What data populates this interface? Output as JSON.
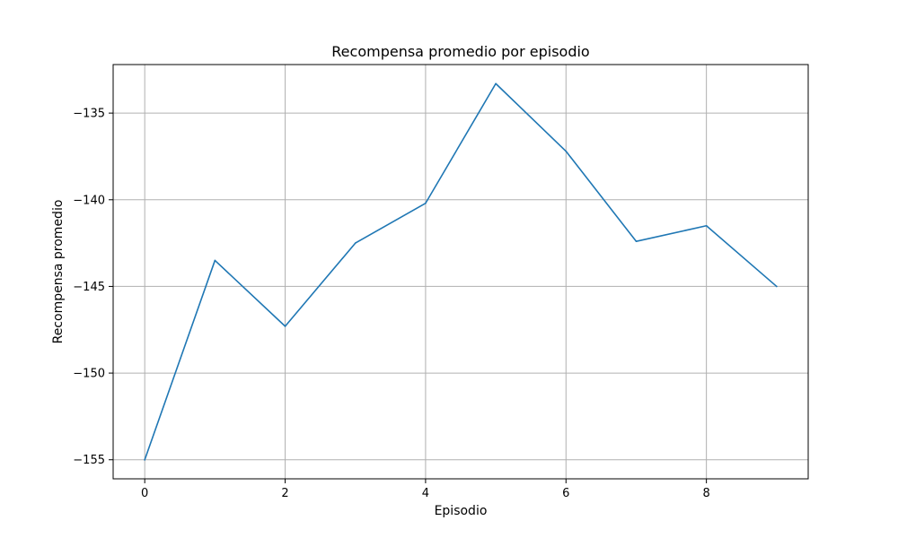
{
  "chart_data": {
    "type": "line",
    "title": "Recompensa promedio por episodio",
    "xlabel": "Episodio",
    "ylabel": "Recompensa promedio",
    "x": [
      0,
      1,
      2,
      3,
      4,
      5,
      6,
      7,
      8,
      9
    ],
    "series": [
      {
        "values": [
          -155.0,
          -143.5,
          -147.3,
          -142.5,
          -140.2,
          -133.3,
          -137.2,
          -142.4,
          -141.5,
          -145.0
        ]
      }
    ],
    "xlim": [
      -0.45,
      9.45
    ],
    "ylim": [
      -156.1,
      -132.2
    ],
    "xticks": [
      0,
      2,
      4,
      6,
      8
    ],
    "xtick_labels": [
      "0",
      "2",
      "4",
      "6",
      "8"
    ],
    "yticks": [
      -155,
      -150,
      -145,
      -140,
      -135
    ],
    "ytick_labels": [
      "−155",
      "−150",
      "−145",
      "−140",
      "−135"
    ],
    "grid": true,
    "legend": "none",
    "colors": {
      "line": "#1f77b4",
      "grid": "#b0b0b0",
      "axis": "#000000"
    }
  }
}
